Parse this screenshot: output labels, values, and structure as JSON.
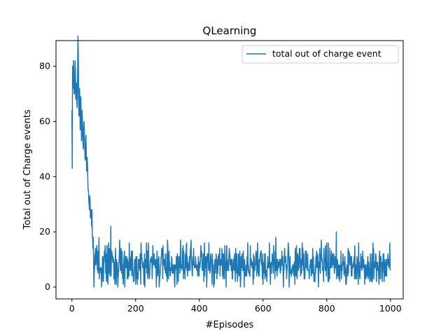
{
  "chart_data": {
    "type": "line",
    "title": "QLearning",
    "xlabel": "#Episodes",
    "ylabel": "Total out of Charge events",
    "xlim": [
      -50,
      1040
    ],
    "ylim": [
      -4.3,
      89.3
    ],
    "xticks": [
      0,
      200,
      400,
      600,
      800,
      1000
    ],
    "yticks": [
      0,
      20,
      40,
      60,
      80
    ],
    "grid": false,
    "legend_position": "top-right",
    "series": [
      {
        "name": "total out of charge event",
        "color": "#1f77b4",
        "anchors": [
          [
            0,
            64
          ],
          [
            1,
            43
          ],
          [
            2,
            80
          ],
          [
            4,
            72
          ],
          [
            6,
            78
          ],
          [
            8,
            70
          ],
          [
            10,
            82
          ],
          [
            12,
            68
          ],
          [
            14,
            74
          ],
          [
            16,
            65
          ],
          [
            18,
            79
          ],
          [
            20,
            85
          ],
          [
            22,
            62
          ],
          [
            24,
            72
          ],
          [
            26,
            57
          ],
          [
            28,
            69
          ],
          [
            30,
            53
          ],
          [
            32,
            64
          ],
          [
            34,
            58
          ],
          [
            36,
            50
          ],
          [
            38,
            60
          ],
          [
            40,
            52
          ],
          [
            42,
            46
          ],
          [
            44,
            55
          ],
          [
            46,
            42
          ],
          [
            48,
            47
          ],
          [
            50,
            38
          ],
          [
            52,
            35
          ],
          [
            54,
            30
          ],
          [
            56,
            33
          ],
          [
            58,
            25
          ],
          [
            60,
            28
          ],
          [
            62,
            22
          ],
          [
            64,
            18
          ],
          [
            66,
            14
          ],
          [
            68,
            10
          ],
          [
            70,
            5
          ],
          [
            72,
            12
          ],
          [
            75,
            8
          ],
          [
            78,
            15
          ],
          [
            80,
            6
          ]
        ],
        "tail": {
          "x_start": 81,
          "x_end": 999,
          "mean": 8,
          "min": 0,
          "max": 22,
          "noise": 3.4
        },
        "spikes": [
          [
            85,
            18
          ],
          [
            95,
            2
          ],
          [
            110,
            15
          ],
          [
            122,
            22
          ],
          [
            135,
            1
          ],
          [
            150,
            17
          ],
          [
            180,
            16
          ],
          [
            205,
            1
          ],
          [
            240,
            16
          ],
          [
            265,
            0
          ],
          [
            300,
            17
          ],
          [
            330,
            1
          ],
          [
            360,
            16
          ],
          [
            405,
            15
          ],
          [
            440,
            1
          ],
          [
            480,
            15
          ],
          [
            520,
            2
          ],
          [
            560,
            15
          ],
          [
            600,
            1
          ],
          [
            620,
            16
          ],
          [
            640,
            18
          ],
          [
            700,
            1
          ],
          [
            760,
            2
          ],
          [
            800,
            16
          ],
          [
            830,
            20
          ],
          [
            860,
            1
          ],
          [
            900,
            16
          ],
          [
            940,
            2
          ],
          [
            980,
            2
          ],
          [
            996,
            9
          ],
          [
            999,
            6
          ]
        ]
      }
    ]
  }
}
